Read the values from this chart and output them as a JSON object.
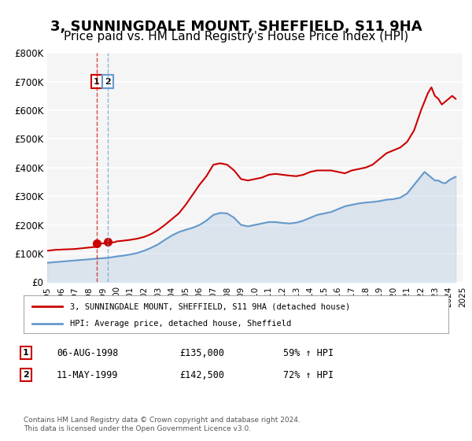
{
  "title": "3, SUNNINGDALE MOUNT, SHEFFIELD, S11 9HA",
  "subtitle": "Price paid vs. HM Land Registry's House Price Index (HPI)",
  "title_fontsize": 13,
  "subtitle_fontsize": 11,
  "xlabel": "",
  "ylabel": "",
  "ylim": [
    0,
    800000
  ],
  "xlim": [
    1995,
    2025
  ],
  "yticks": [
    0,
    100000,
    200000,
    300000,
    400000,
    500000,
    600000,
    700000,
    800000
  ],
  "ytick_labels": [
    "£0",
    "£100K",
    "£200K",
    "£300K",
    "£400K",
    "£500K",
    "£600K",
    "£700K",
    "£800K"
  ],
  "xticks": [
    1995,
    1996,
    1997,
    1998,
    1999,
    2000,
    2001,
    2002,
    2003,
    2004,
    2005,
    2006,
    2007,
    2008,
    2009,
    2010,
    2011,
    2012,
    2013,
    2014,
    2015,
    2016,
    2017,
    2018,
    2019,
    2020,
    2021,
    2022,
    2023,
    2024,
    2025
  ],
  "property_color": "#cc0000",
  "hpi_color": "#6699cc",
  "background_color": "#f5f5f5",
  "grid_color": "#ffffff",
  "sale1_x": 1998.58,
  "sale1_y": 135000,
  "sale2_x": 1999.36,
  "sale2_y": 142500,
  "vline1_x": 1998.58,
  "vline2_x": 1999.36,
  "legend_property": "3, SUNNINGDALE MOUNT, SHEFFIELD, S11 9HA (detached house)",
  "legend_hpi": "HPI: Average price, detached house, Sheffield",
  "table_rows": [
    {
      "num": "1",
      "date": "06-AUG-1998",
      "price": "£135,000",
      "hpi": "59% ↑ HPI"
    },
    {
      "num": "2",
      "date": "11-MAY-1999",
      "price": "£142,500",
      "hpi": "72% ↑ HPI"
    }
  ],
  "footnote": "Contains HM Land Registry data © Crown copyright and database right 2024.\nThis data is licensed under the Open Government Licence v3.0.",
  "property_line": {
    "x": [
      1995.0,
      1995.1,
      1995.2,
      1995.3,
      1995.4,
      1995.5,
      1995.6,
      1995.7,
      1995.8,
      1995.9,
      1996.0,
      1996.1,
      1996.2,
      1996.3,
      1996.4,
      1996.5,
      1996.6,
      1996.7,
      1996.8,
      1996.9,
      1997.0,
      1997.1,
      1997.2,
      1997.3,
      1997.4,
      1997.5,
      1997.6,
      1997.7,
      1997.8,
      1997.9,
      1998.0,
      1998.1,
      1998.2,
      1998.3,
      1998.4,
      1998.5,
      1998.6,
      1998.7,
      1998.8,
      1998.9,
      1999.0,
      1999.1,
      1999.2,
      1999.3,
      1999.4,
      1999.5,
      1999.6,
      1999.7,
      1999.8,
      1999.9,
      2000.0,
      2000.5,
      2001.0,
      2001.5,
      2002.0,
      2002.5,
      2003.0,
      2003.5,
      2004.0,
      2004.5,
      2005.0,
      2005.5,
      2006.0,
      2006.5,
      2007.0,
      2007.5,
      2008.0,
      2008.5,
      2009.0,
      2009.5,
      2010.0,
      2010.5,
      2011.0,
      2011.5,
      2012.0,
      2012.5,
      2013.0,
      2013.5,
      2014.0,
      2014.5,
      2015.0,
      2015.5,
      2016.0,
      2016.5,
      2017.0,
      2017.5,
      2018.0,
      2018.5,
      2019.0,
      2019.5,
      2020.0,
      2020.5,
      2021.0,
      2021.5,
      2022.0,
      2022.25,
      2022.5,
      2022.75,
      2023.0,
      2023.25,
      2023.5,
      2023.75,
      2024.0,
      2024.25,
      2024.5
    ],
    "y": [
      110000,
      110500,
      111000,
      111500,
      112000,
      112500,
      113000,
      113500,
      113500,
      113500,
      114000,
      114200,
      114400,
      114600,
      114800,
      115000,
      115200,
      115400,
      115600,
      115800,
      116000,
      116500,
      117000,
      117500,
      118000,
      118500,
      119000,
      119500,
      120000,
      120500,
      121000,
      121500,
      122000,
      122500,
      123000,
      123500,
      124000,
      135000,
      135000,
      135200,
      135500,
      136000,
      136500,
      137000,
      137500,
      138000,
      138500,
      139000,
      139500,
      140000,
      142500,
      145000,
      148000,
      152000,
      158000,
      168000,
      182000,
      200000,
      220000,
      240000,
      270000,
      305000,
      340000,
      370000,
      410000,
      415000,
      410000,
      390000,
      360000,
      355000,
      360000,
      365000,
      375000,
      378000,
      375000,
      372000,
      370000,
      375000,
      385000,
      390000,
      390000,
      390000,
      385000,
      380000,
      390000,
      395000,
      400000,
      410000,
      430000,
      450000,
      460000,
      470000,
      490000,
      530000,
      600000,
      630000,
      660000,
      680000,
      650000,
      640000,
      620000,
      630000,
      640000,
      650000,
      640000
    ]
  },
  "hpi_line": {
    "x": [
      1995.0,
      1995.5,
      1996.0,
      1996.5,
      1997.0,
      1997.5,
      1998.0,
      1998.5,
      1999.0,
      1999.5,
      2000.0,
      2000.5,
      2001.0,
      2001.5,
      2002.0,
      2002.5,
      2003.0,
      2003.5,
      2004.0,
      2004.5,
      2005.0,
      2005.5,
      2006.0,
      2006.5,
      2007.0,
      2007.5,
      2008.0,
      2008.5,
      2009.0,
      2009.5,
      2010.0,
      2010.5,
      2011.0,
      2011.5,
      2012.0,
      2012.5,
      2013.0,
      2013.5,
      2014.0,
      2014.5,
      2015.0,
      2015.5,
      2016.0,
      2016.5,
      2017.0,
      2017.5,
      2018.0,
      2018.5,
      2019.0,
      2019.5,
      2020.0,
      2020.5,
      2021.0,
      2021.5,
      2022.0,
      2022.25,
      2022.5,
      2022.75,
      2023.0,
      2023.25,
      2023.5,
      2023.75,
      2024.0,
      2024.25,
      2024.5
    ],
    "y": [
      68000,
      70000,
      72000,
      74000,
      76000,
      78000,
      80000,
      82000,
      84000,
      86000,
      90000,
      93000,
      97000,
      102000,
      110000,
      120000,
      132000,
      148000,
      163000,
      175000,
      183000,
      190000,
      200000,
      215000,
      235000,
      242000,
      240000,
      225000,
      200000,
      195000,
      200000,
      205000,
      210000,
      210000,
      207000,
      205000,
      208000,
      215000,
      225000,
      235000,
      240000,
      245000,
      255000,
      265000,
      270000,
      275000,
      278000,
      280000,
      283000,
      288000,
      290000,
      295000,
      310000,
      340000,
      370000,
      385000,
      375000,
      365000,
      355000,
      355000,
      348000,
      345000,
      355000,
      362000,
      368000
    ]
  }
}
